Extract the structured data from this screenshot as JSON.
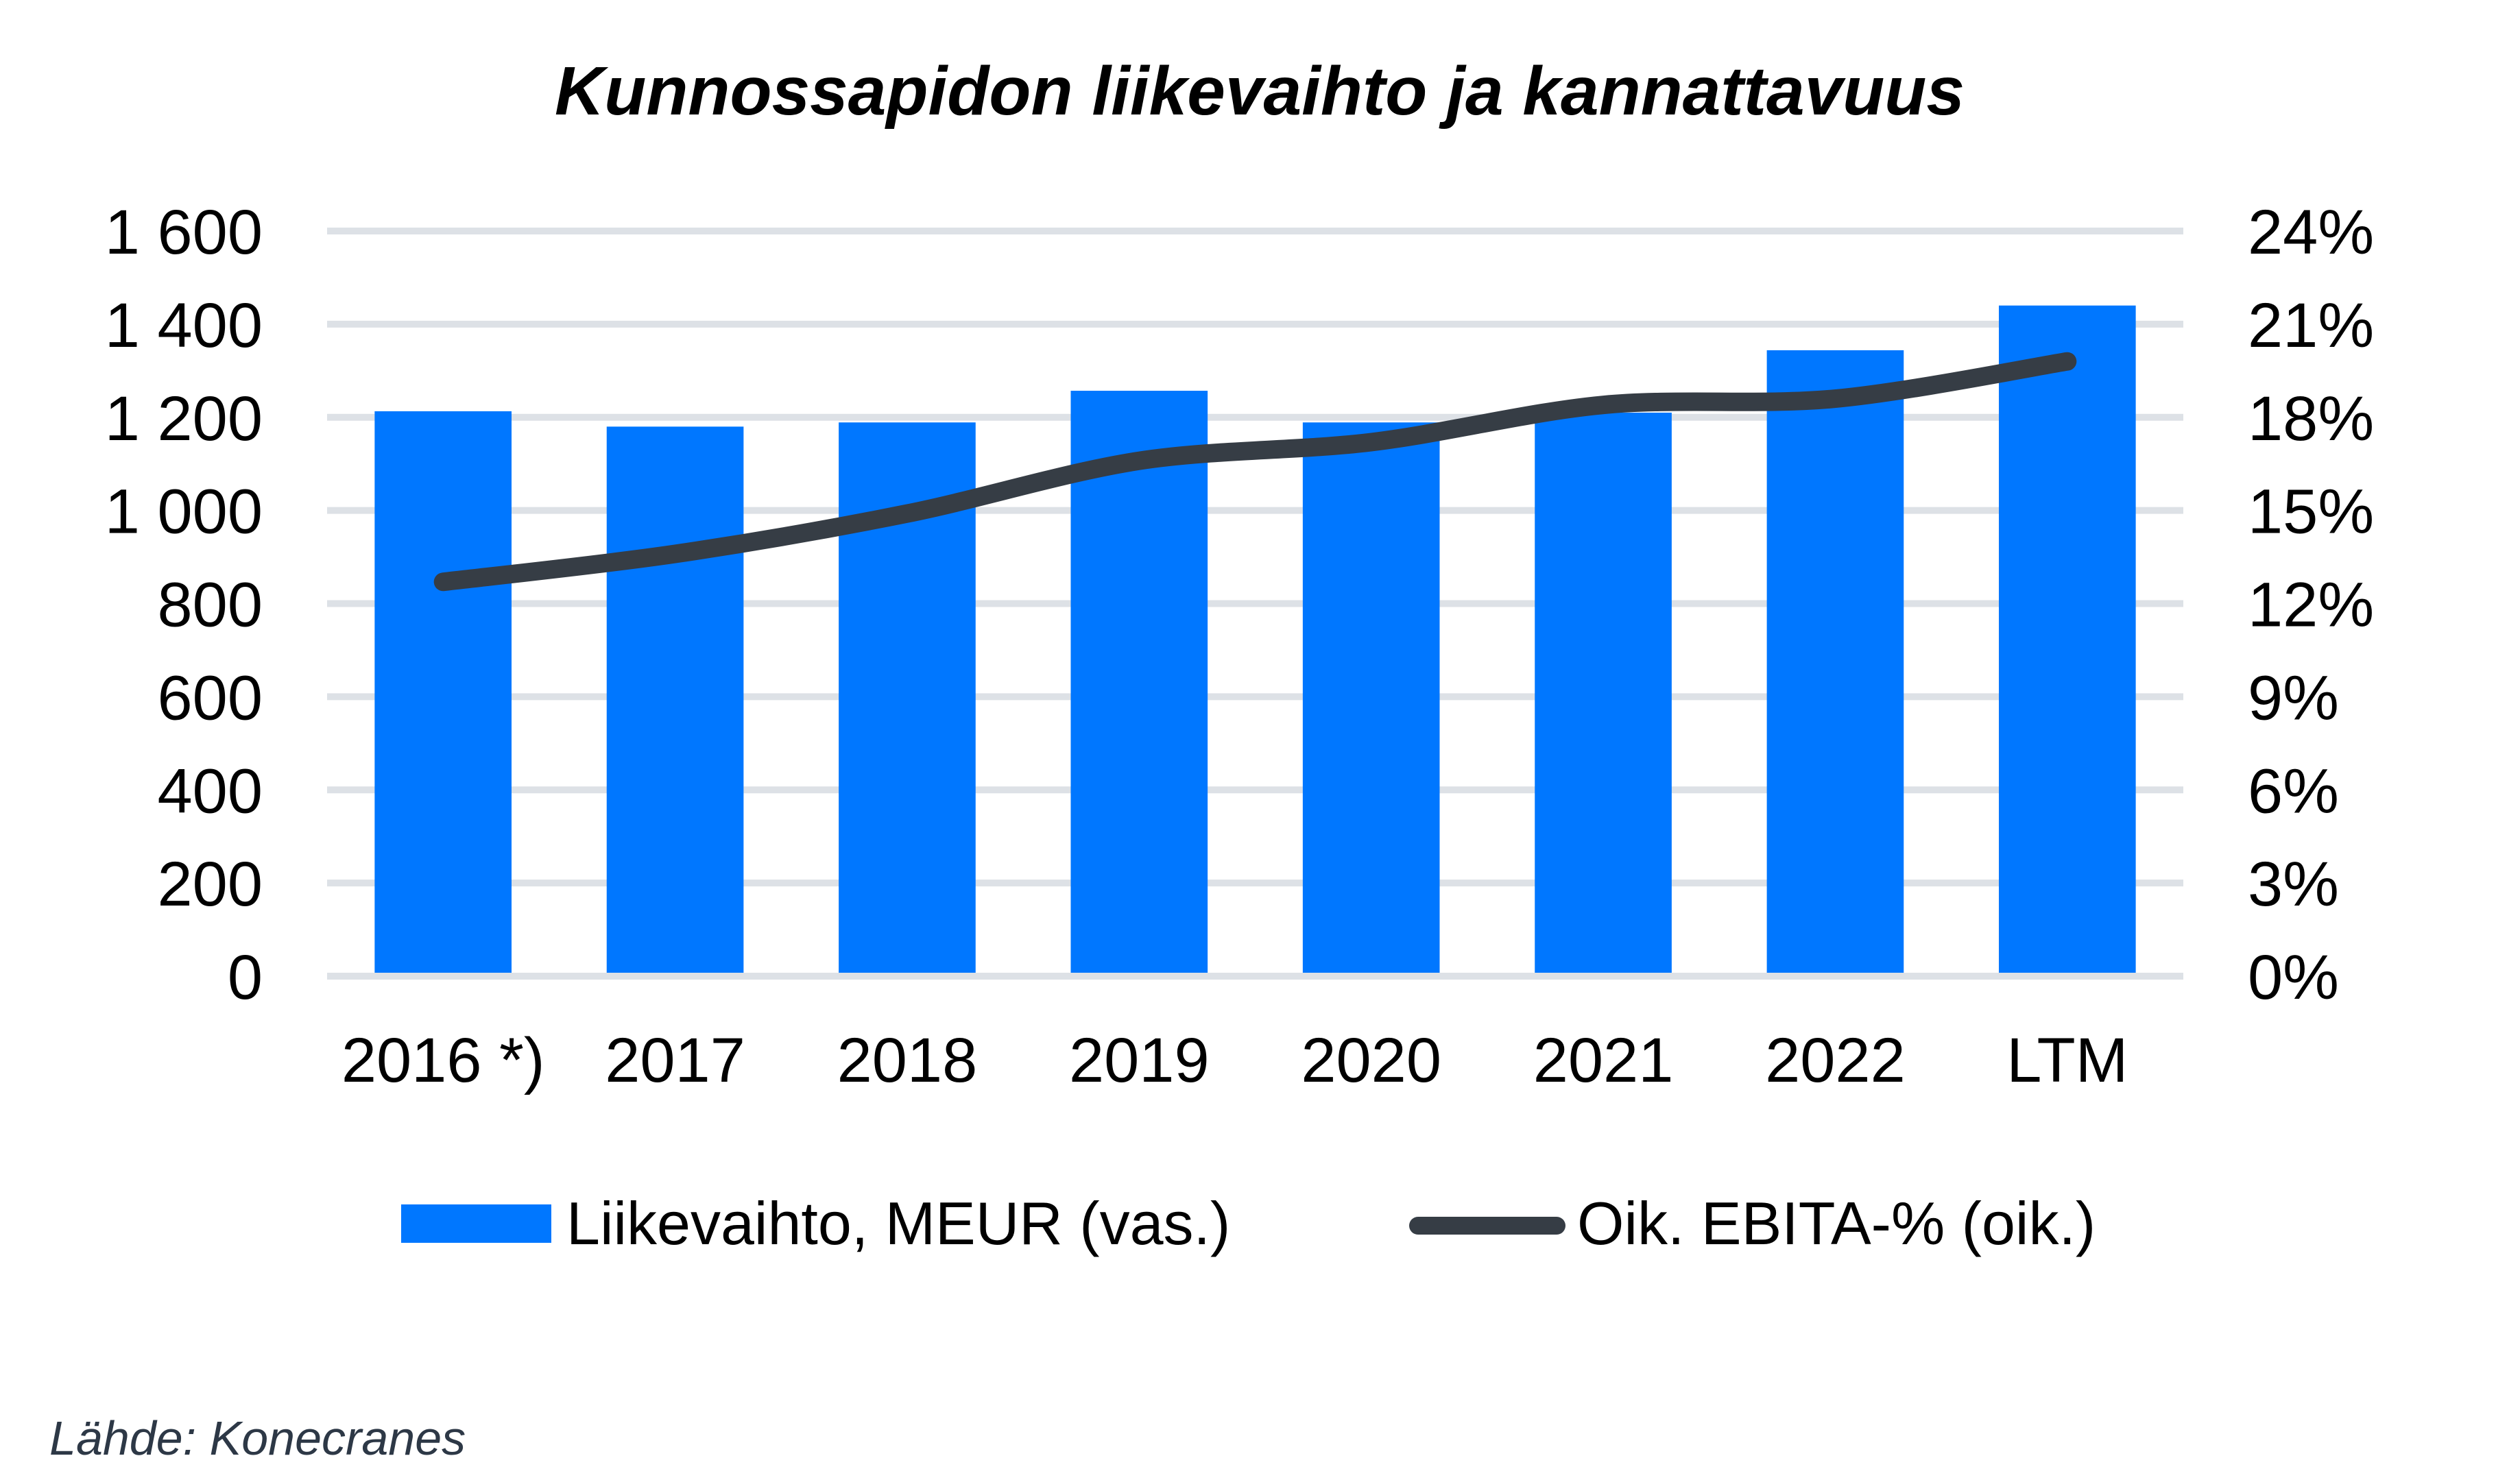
{
  "chart_data": {
    "type": "bar",
    "title": "Kunnossapidon liikevaihto ja kannattavuus",
    "categories": [
      "2016 *)",
      "2017",
      "2018",
      "2019",
      "2020",
      "2021",
      "2022",
      "LTM"
    ],
    "series": [
      {
        "name": "Liikevaihto, MEUR (vas.)",
        "type": "bar",
        "axis": "left",
        "color": "#0077ff",
        "values": [
          1213,
          1180,
          1189,
          1257,
          1189,
          1210,
          1344,
          1440
        ]
      },
      {
        "name": "Oik. EBITA-% (oik.)",
        "type": "line",
        "axis": "right",
        "color": "#363d45",
        "values": [
          12.7,
          13.6,
          14.9,
          16.6,
          17.2,
          18.4,
          18.6,
          19.8
        ]
      }
    ],
    "left_axis": {
      "label": "",
      "ylim": [
        0,
        1600
      ],
      "ticks": [
        0,
        200,
        400,
        600,
        800,
        1000,
        1200,
        1400,
        1600
      ],
      "tick_labels": [
        "0",
        "200",
        "400",
        "600",
        "800",
        "1 000",
        "1 200",
        "1 400",
        "1 600"
      ]
    },
    "right_axis": {
      "label": "",
      "ylim": [
        0,
        24
      ],
      "ticks": [
        0,
        3,
        6,
        9,
        12,
        15,
        18,
        21,
        24
      ],
      "tick_labels": [
        "0%",
        "3%",
        "6%",
        "9%",
        "12%",
        "15%",
        "18%",
        "21%",
        "24%"
      ]
    },
    "xlabel": "",
    "grid": true,
    "grid_color": "#dde1e6",
    "legend_position": "bottom",
    "source": "Lähde: Konecranes"
  }
}
